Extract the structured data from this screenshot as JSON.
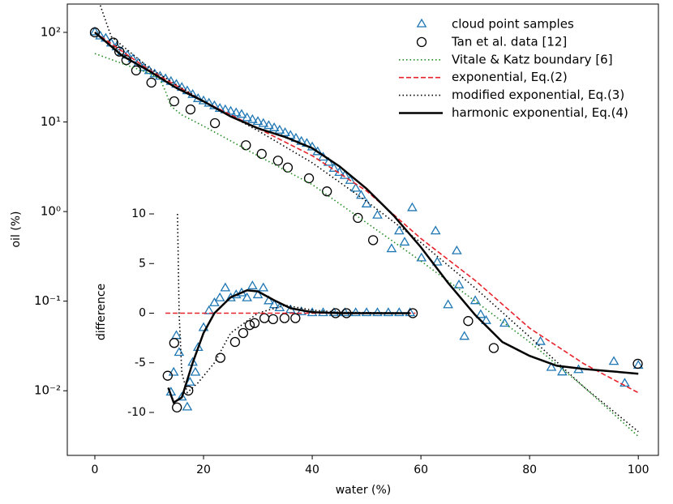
{
  "chart_data": [
    {
      "type": "line",
      "xlabel": "water (%)",
      "ylabel": "oil (%)",
      "log_y": true,
      "xlim": [
        -5.07,
        103.7
      ],
      "ylim": [
        0.0019,
        207
      ],
      "xticks": [
        0,
        20,
        40,
        60,
        80,
        100
      ],
      "yticks": [
        {
          "value": 0.01,
          "label": "10⁻²"
        },
        {
          "value": 0.1,
          "label": "10⁻¹"
        },
        {
          "value": 1,
          "label": "10⁰"
        },
        {
          "value": 10,
          "label": "10¹"
        },
        {
          "value": 100,
          "label": "10²"
        }
      ],
      "legend": "upper right",
      "series": [
        {
          "name": "cloud point samples",
          "color": "#1f77b4",
          "marker": "triangle",
          "x": [
            0,
            1,
            2,
            3,
            4,
            5,
            6,
            7,
            8,
            9,
            10,
            11,
            12,
            13,
            14,
            15,
            16,
            17,
            18,
            19,
            20,
            21,
            22,
            23,
            24,
            25,
            26,
            27,
            28,
            29,
            30,
            31,
            32,
            33,
            34,
            35,
            36,
            37,
            38,
            39,
            40,
            41,
            42,
            43,
            44,
            45,
            46,
            47,
            48,
            49,
            50,
            52,
            54.6,
            56,
            57,
            58.4,
            60.1,
            62.7,
            63,
            65,
            66.6,
            67,
            68,
            70,
            71,
            72,
            75.4,
            82,
            84,
            86,
            89,
            95.5,
            97.5,
            100
          ],
          "values": [
            100,
            90,
            85,
            75,
            68,
            60,
            55,
            50,
            45,
            40,
            37,
            34,
            32,
            30,
            28,
            26,
            24,
            22,
            20,
            18,
            17,
            16,
            15,
            14,
            13.5,
            13,
            12.5,
            12,
            11,
            10.5,
            10,
            9.5,
            9,
            8.5,
            8,
            7.5,
            7,
            6.5,
            6,
            5.7,
            5.2,
            4.6,
            4,
            3.5,
            3,
            2.7,
            2.5,
            2.2,
            1.8,
            1.5,
            1.2,
            0.9,
            0.38,
            0.6,
            0.45,
            1.09,
            0.3,
            0.6,
            0.27,
            0.09,
            0.36,
            0.15,
            0.04,
            0.1,
            0.07,
            0.06,
            0.056,
            0.035,
            0.018,
            0.016,
            0.017,
            0.021,
            0.012,
            0.019
          ]
        },
        {
          "name": "Tan et al. data [12]",
          "color": "#000000",
          "marker": "circle",
          "x": [
            0,
            3.4,
            4.5,
            5.8,
            7.6,
            10.4,
            14.6,
            17.6,
            22.1,
            27.8,
            30.7,
            33.7,
            35.5,
            39.4,
            42.7,
            48.4,
            51.2,
            68.7,
            73.4,
            99.9
          ],
          "values": [
            100,
            77,
            61,
            49,
            37.6,
            27.5,
            17,
            13.8,
            9.7,
            5.5,
            4.4,
            3.7,
            3.1,
            2.35,
            1.68,
            0.85,
            0.48,
            0.06,
            0.03,
            0.02
          ]
        },
        {
          "name": "Vitale & Katz boundary [6]",
          "color": "#228b22",
          "linestyle": "dotted",
          "x": [
            0,
            5,
            10,
            12,
            13,
            14,
            16,
            20,
            30,
            40,
            50,
            60,
            70,
            80,
            90,
            100
          ],
          "values": [
            58,
            45,
            35,
            30,
            22,
            15,
            12,
            9,
            4.2,
            2,
            0.75,
            0.28,
            0.1,
            0.035,
            0.011,
            0.0031
          ]
        },
        {
          "name": "exponential, Eq.(2)",
          "color": "#e8222a",
          "linestyle": "dashed",
          "x": [
            0,
            10,
            20,
            30,
            40,
            50,
            60,
            70,
            80,
            90,
            100
          ],
          "values": [
            100,
            38,
            17,
            8.5,
            4.2,
            1.7,
            0.5,
            0.17,
            0.05,
            0.02,
            0.0095
          ]
        },
        {
          "name": "modified exponential, Eq.(3)",
          "color": "#000000",
          "linestyle": "dotted",
          "x": [
            1,
            3,
            10,
            20,
            30,
            40,
            50,
            60,
            70,
            80,
            90,
            100
          ],
          "values": [
            200,
            90,
            40,
            17,
            8,
            3.5,
            1.3,
            0.45,
            0.14,
            0.04,
            0.011,
            0.0035
          ]
        },
        {
          "name": "harmonic exponential, Eq.(4)",
          "color": "#000000",
          "linestyle": "solid",
          "x": [
            0,
            5,
            10,
            15,
            20,
            25,
            30,
            35,
            40,
            45,
            50,
            55,
            60,
            65,
            70,
            75,
            80,
            85,
            90,
            95,
            100
          ],
          "values": [
            100,
            55,
            37,
            24,
            17,
            11.5,
            8.5,
            6.8,
            5.1,
            3.2,
            1.8,
            0.9,
            0.4,
            0.16,
            0.07,
            0.035,
            0.0245,
            0.019,
            0.0175,
            0.0165,
            0.0155
          ]
        }
      ]
    },
    {
      "type": "line",
      "ylabel": "difference",
      "xlim": [
        -5.07,
        103.7
      ],
      "ylim": [
        -10,
        10
      ],
      "yticks": [
        -10,
        -5,
        0,
        5,
        10
      ],
      "series": [
        {
          "color": "#1f77b4",
          "marker": "triangle",
          "x": [
            14,
            14.5,
            15,
            15.5,
            16,
            17,
            17.5,
            18,
            18.5,
            19,
            20,
            21,
            22,
            23,
            24,
            25,
            26,
            27,
            28,
            29,
            30,
            31,
            32,
            33,
            34,
            36,
            38,
            40,
            42,
            44,
            46,
            48,
            50,
            52,
            54,
            56,
            58
          ],
          "values": [
            -8,
            -6,
            -2.3,
            -4,
            -8.5,
            -9.5,
            -7,
            -5,
            -6,
            -3.5,
            -1.5,
            0.2,
            1,
            1.5,
            2.5,
            1.5,
            1.8,
            2,
            1.5,
            2.7,
            1.8,
            2.5,
            1.2,
            0.8,
            0.5,
            0.3,
            0.1,
            0,
            0,
            0,
            0,
            0,
            0,
            0,
            0,
            0,
            0
          ]
        },
        {
          "color": "#000000",
          "marker": "circle",
          "x": [
            13.4,
            14.6,
            15.1,
            17.2,
            23.1,
            25.8,
            27.3,
            28.5,
            29.4,
            31.2,
            32.8,
            34.9,
            36.9,
            44.3,
            46.3,
            58.5
          ],
          "values": [
            -6.3,
            -3,
            -9.5,
            -7.8,
            -4.5,
            -2.9,
            -2,
            -1.2,
            -1,
            -0.5,
            -0.6,
            -0.5,
            -0.5,
            0,
            0,
            0
          ]
        },
        {
          "color": "#e8222a",
          "linestyle": "dashed",
          "x": [
            13,
            59
          ],
          "values": [
            0,
            0
          ]
        },
        {
          "color": "#000000",
          "linestyle": "dotted",
          "x": [
            15.2,
            15.5,
            16,
            17,
            19,
            22,
            25,
            30,
            35,
            40,
            45,
            58
          ],
          "values": [
            10,
            0,
            -6,
            -8,
            -7,
            -5,
            -2,
            0,
            0.8,
            0.3,
            0.1,
            0
          ]
        },
        {
          "color": "#000000",
          "linestyle": "solid",
          "x": [
            13.5,
            14.5,
            16,
            18,
            20,
            22,
            25,
            28,
            30,
            33,
            36,
            40,
            45,
            58
          ],
          "values": [
            -7.5,
            -9,
            -8.5,
            -5,
            -2,
            0,
            1.6,
            2.3,
            2.2,
            1.3,
            0.5,
            0.1,
            0,
            0
          ]
        }
      ]
    }
  ]
}
